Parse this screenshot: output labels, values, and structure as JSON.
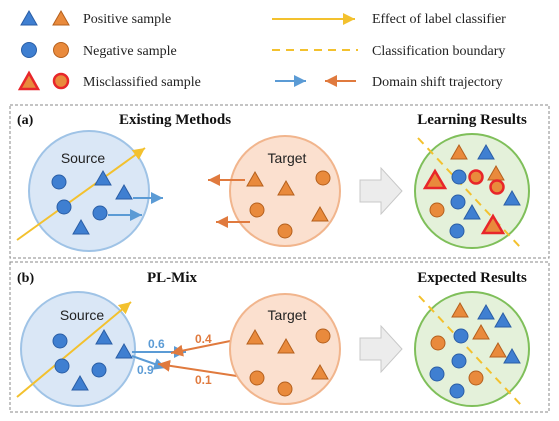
{
  "legend": {
    "positive": "Positive sample",
    "negative": "Negative sample",
    "misclassified": "Misclassified sample",
    "label_effect": "Effect of label classifier",
    "boundary": "Classification boundary",
    "trajectory": "Domain shift trajectory"
  },
  "panel_a": {
    "tag": "(a)",
    "title": "Existing Methods",
    "result_title": "Learning Results",
    "source": "Source",
    "target": "Target"
  },
  "panel_b": {
    "tag": "(b)",
    "title": "PL-Mix",
    "result_title": "Expected Results",
    "source": "Source",
    "target": "Target",
    "w_blue_top": "0.6",
    "w_blue_bottom": "0.9",
    "w_orange_top": "0.4",
    "w_orange_bottom": "0.1"
  },
  "colors": {
    "blue_fill": "#3f7fd1",
    "blue_stroke": "#2a5ea6",
    "orange_fill": "#e98a3c",
    "orange_stroke": "#b5601d",
    "red": "#e8262a",
    "gold": "#f3c12e",
    "blue_arrow": "#5b9bd5",
    "orange_arrow": "#e07a3e",
    "source_fill": "#dae7f6",
    "source_stroke": "#9fc3e6",
    "target_fill": "#fbe0cf",
    "target_stroke": "#f1b58d",
    "result_fill": "#e4f1da",
    "result_stroke": "#7fbf5a"
  }
}
